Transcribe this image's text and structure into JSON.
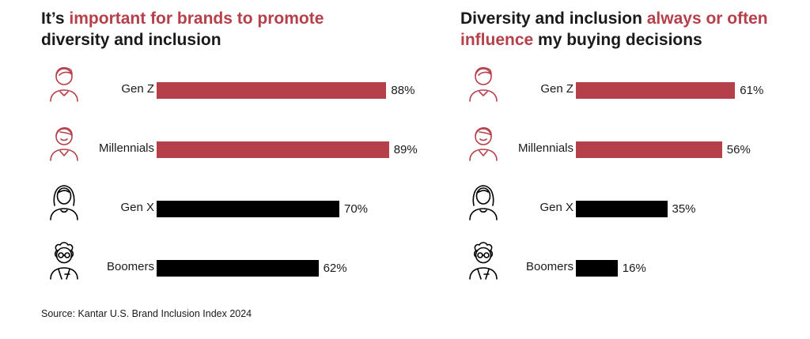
{
  "colors": {
    "accent": "#b5404a",
    "dark": "#000000",
    "text": "#1a1a1a"
  },
  "charts": [
    {
      "title_parts": [
        {
          "text": "It’s ",
          "highlight": false
        },
        {
          "text": "important for brands to promote",
          "highlight": true
        },
        {
          "text": " diversity and inclusion",
          "highlight": false
        }
      ]
    },
    {
      "title_parts": [
        {
          "text": "Diversity and inclusion ",
          "highlight": false
        },
        {
          "text": "always or often influence",
          "highlight": true
        },
        {
          "text": " my buying decisions",
          "highlight": false
        }
      ]
    }
  ],
  "chart_data": [
    {
      "type": "bar",
      "orientation": "horizontal",
      "title": "It’s important for brands to promote diversity and inclusion",
      "categories": [
        "Gen Z",
        "Millennials",
        "Gen X",
        "Boomers"
      ],
      "values": [
        88,
        89,
        70,
        62
      ],
      "value_labels": [
        "88%",
        "89%",
        "70%",
        "62%"
      ],
      "bar_colors": [
        "#b5404a",
        "#b5404a",
        "#000000",
        "#000000"
      ],
      "icons": [
        "genz-person-icon",
        "millennial-person-icon",
        "genx-person-icon",
        "boomer-person-icon"
      ],
      "xlim": [
        0,
        100
      ],
      "grid": false,
      "legend": "none"
    },
    {
      "type": "bar",
      "orientation": "horizontal",
      "title": "Diversity and inclusion always or often influence my buying decisions",
      "categories": [
        "Gen Z",
        "Millennials",
        "Gen X",
        "Boomers"
      ],
      "values": [
        61,
        56,
        35,
        16
      ],
      "value_labels": [
        "61%",
        "56%",
        "35%",
        "16%"
      ],
      "bar_colors": [
        "#b5404a",
        "#b5404a",
        "#000000",
        "#000000"
      ],
      "icons": [
        "genz-person-icon",
        "millennial-person-icon",
        "genx-person-icon",
        "boomer-person-icon"
      ],
      "xlim": [
        0,
        100
      ],
      "grid": false,
      "legend": "none"
    }
  ],
  "source": "Source: Kantar U.S. Brand Inclusion Index 2024"
}
